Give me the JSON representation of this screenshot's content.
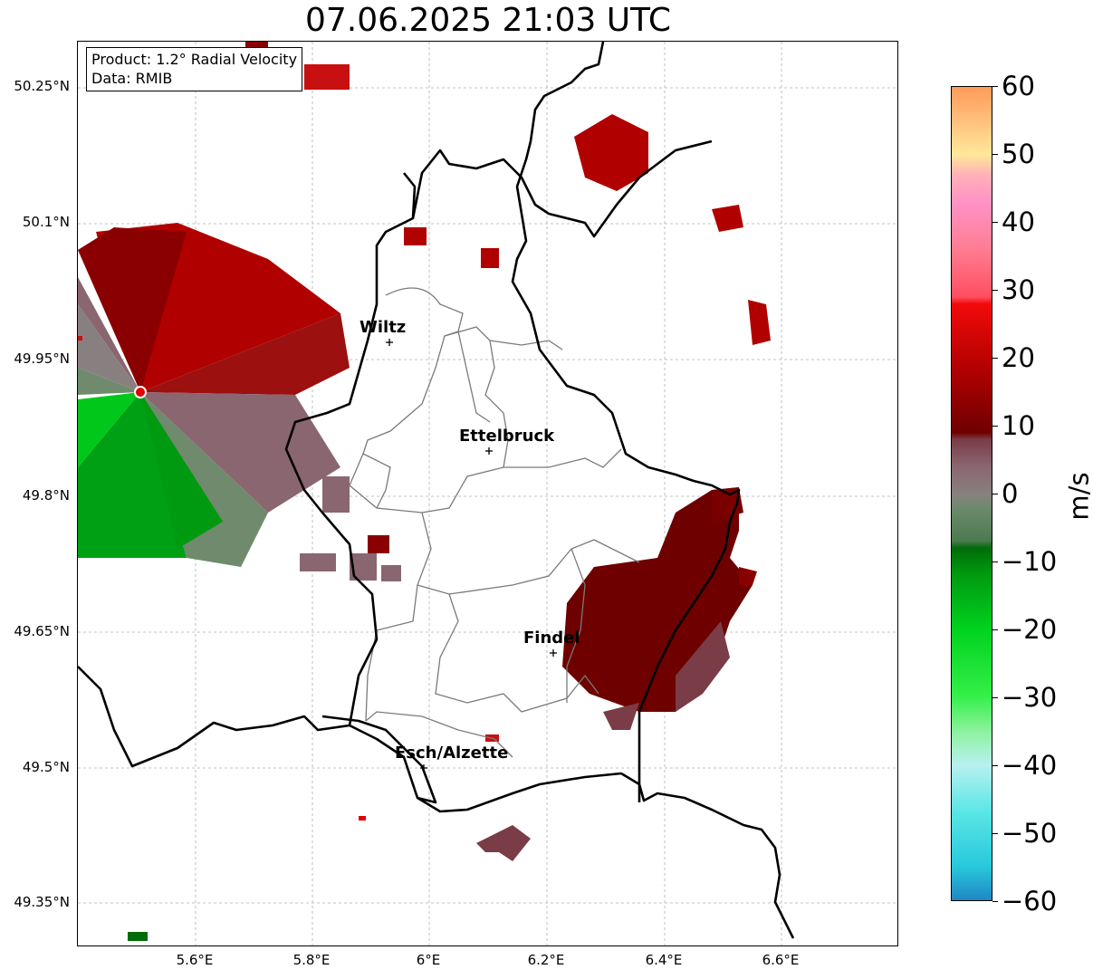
{
  "title": "07.06.2025 21:03 UTC",
  "info": {
    "product": "Product: 1.2° Radial Velocity",
    "data": "Data: RMIB"
  },
  "lat_ticks": [
    "50.25°N",
    "50.1°N",
    "49.95°N",
    "49.8°N",
    "49.65°N",
    "49.5°N",
    "49.35°N"
  ],
  "lon_ticks": [
    "5.6°E",
    "5.8°E",
    "6°E",
    "6.2°E",
    "6.4°E",
    "6.6°E"
  ],
  "cities": [
    {
      "name": "Wiltz"
    },
    {
      "name": "Ettelbruck"
    },
    {
      "name": "Findel"
    },
    {
      "name": "Esch/Alzette"
    }
  ],
  "colorbar": {
    "unit": "m/s",
    "range": [
      -60,
      60
    ],
    "ticks": [
      "60",
      "50",
      "40",
      "30",
      "20",
      "10",
      "0",
      "−10",
      "−20",
      "−30",
      "−40",
      "−50",
      "−60"
    ],
    "stops": [
      {
        "v": -60,
        "c": "#1f86c4"
      },
      {
        "v": -55,
        "c": "#27c9dc"
      },
      {
        "v": -47,
        "c": "#5ae6e6"
      },
      {
        "v": -40,
        "c": "#b8f0f0"
      },
      {
        "v": -35,
        "c": "#8cf29c"
      },
      {
        "v": -30,
        "c": "#35f04a"
      },
      {
        "v": -20,
        "c": "#00d21e"
      },
      {
        "v": -12,
        "c": "#009a10"
      },
      {
        "v": -8,
        "c": "#006c08"
      },
      {
        "v": -7,
        "c": "#4a7a4f"
      },
      {
        "v": -2,
        "c": "#6f8a6d"
      },
      {
        "v": 0,
        "c": "#888080"
      },
      {
        "v": 4,
        "c": "#8a6670"
      },
      {
        "v": 8,
        "c": "#7a3c46"
      },
      {
        "v": 9,
        "c": "#6e0000"
      },
      {
        "v": 18,
        "c": "#b00000"
      },
      {
        "v": 28,
        "c": "#f20a0a"
      },
      {
        "v": 29,
        "c": "#ff4e60"
      },
      {
        "v": 36,
        "c": "#ff7c92"
      },
      {
        "v": 43,
        "c": "#ff92c6"
      },
      {
        "v": 47,
        "c": "#ffb0b8"
      },
      {
        "v": 50,
        "c": "#ffe89a"
      },
      {
        "v": 55,
        "c": "#ffc07c"
      },
      {
        "v": 60,
        "c": "#ff9a5a"
      }
    ]
  },
  "radar_site_color": "#e00000"
}
